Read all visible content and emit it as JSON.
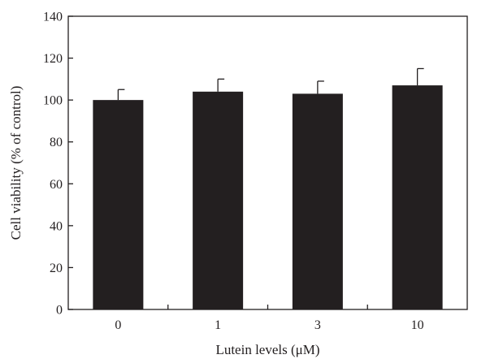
{
  "chart_data": {
    "type": "bar",
    "title": "",
    "xlabel": "Lutein levels (μM)",
    "ylabel": "Cell viability (% of control)",
    "categories": [
      "0",
      "1",
      "3",
      "10"
    ],
    "series": [
      {
        "values": [
          100,
          104,
          103,
          107
        ],
        "error": [
          5,
          6,
          6,
          8
        ]
      }
    ],
    "ylim": [
      0,
      140
    ],
    "yticks": [
      0,
      20,
      40,
      60,
      80,
      100,
      120,
      140
    ],
    "grid": false,
    "legend": "none",
    "bar_color": "#231f20",
    "axis_color": "#231f20"
  }
}
